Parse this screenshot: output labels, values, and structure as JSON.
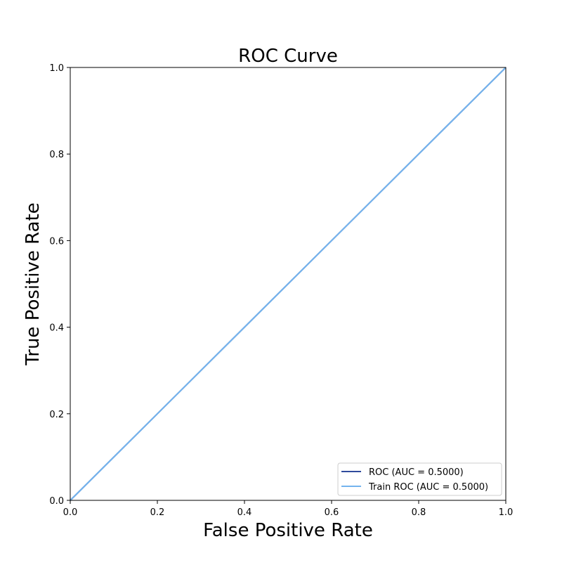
{
  "chart_data": {
    "type": "line",
    "title": "ROC Curve",
    "xlabel": "False Positive Rate",
    "ylabel": "True Positive Rate",
    "xlim": [
      0.0,
      1.0
    ],
    "ylim": [
      0.0,
      1.0
    ],
    "xticks": [
      0.0,
      0.2,
      0.4,
      0.6,
      0.8,
      1.0
    ],
    "yticks": [
      0.0,
      0.2,
      0.4,
      0.6,
      0.8,
      1.0
    ],
    "x_tick_labels": [
      "0.0",
      "0.2",
      "0.4",
      "0.6",
      "0.8",
      "1.0"
    ],
    "y_tick_labels": [
      "0.0",
      "0.2",
      "0.4",
      "0.6",
      "0.8",
      "1.0"
    ],
    "grid": false,
    "legend_position": "lower-right",
    "series": [
      {
        "name": "ROC (AUC = 0.5000)",
        "color": "#2f4b9c",
        "x": [
          0.0,
          1.0
        ],
        "y": [
          0.0,
          1.0
        ]
      },
      {
        "name": "Train ROC (AUC = 0.5000)",
        "color": "#74b4ee",
        "x": [
          0.0,
          1.0
        ],
        "y": [
          0.0,
          1.0
        ]
      }
    ]
  }
}
